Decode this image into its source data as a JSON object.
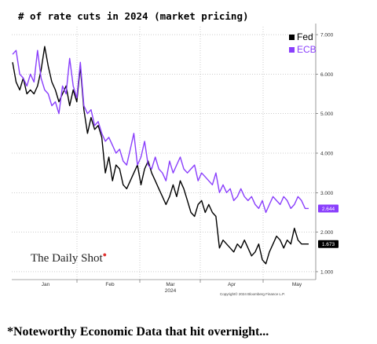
{
  "chart_data": {
    "type": "line",
    "title": "# of rate cuts in 2024 (market pricing)",
    "x_ticks": [
      "Jan",
      "Feb",
      "Mar",
      "Apr",
      "May"
    ],
    "x_year_label": "2024",
    "ylim": [
      0.8,
      7.2
    ],
    "y_ticks": [
      1.0,
      2.0,
      3.0,
      4.0,
      5.0,
      6.0,
      7.0
    ],
    "y_tick_labels": [
      "1.000",
      "2.000",
      "3.000",
      "4.000",
      "5.000",
      "6.000",
      "7.000"
    ],
    "grid": true,
    "legend_position": "top-right",
    "series": [
      {
        "name": "Fed",
        "color": "#000000",
        "last_value_label": "1.673",
        "values": [
          6.3,
          5.8,
          5.6,
          5.9,
          5.5,
          5.6,
          5.5,
          5.7,
          6.1,
          6.7,
          6.2,
          5.8,
          5.6,
          5.3,
          5.5,
          5.7,
          5.2,
          5.6,
          5.3,
          6.2,
          5.1,
          4.5,
          4.9,
          4.6,
          4.7,
          4.4,
          3.5,
          3.9,
          3.3,
          3.7,
          3.6,
          3.2,
          3.1,
          3.3,
          3.5,
          3.7,
          3.2,
          3.6,
          3.8,
          3.5,
          3.3,
          3.1,
          2.9,
          2.7,
          2.9,
          3.2,
          2.9,
          3.3,
          3.1,
          2.8,
          2.5,
          2.4,
          2.7,
          2.8,
          2.5,
          2.7,
          2.5,
          2.4,
          1.6,
          1.8,
          1.7,
          1.6,
          1.5,
          1.7,
          1.6,
          1.8,
          1.6,
          1.4,
          1.5,
          1.7,
          1.3,
          1.2,
          1.5,
          1.7,
          1.9,
          1.8,
          1.6,
          1.8,
          1.7,
          2.1,
          1.8,
          1.7,
          1.7,
          1.7
        ]
      },
      {
        "name": "ECB",
        "color": "#8a3ffc",
        "last_value_label": "2.644",
        "values": [
          6.5,
          6.6,
          6.0,
          5.9,
          5.7,
          6.0,
          5.8,
          6.6,
          5.9,
          5.6,
          5.5,
          5.2,
          5.3,
          5.0,
          5.7,
          5.5,
          6.4,
          5.7,
          5.4,
          6.3,
          5.2,
          5.0,
          5.1,
          4.7,
          4.8,
          4.5,
          4.3,
          4.4,
          4.2,
          4.0,
          4.1,
          3.8,
          3.7,
          4.1,
          4.5,
          3.7,
          3.9,
          4.3,
          3.7,
          3.6,
          3.9,
          3.6,
          3.5,
          3.3,
          3.8,
          3.5,
          3.7,
          3.9,
          3.6,
          3.5,
          3.6,
          3.7,
          3.3,
          3.5,
          3.4,
          3.3,
          3.2,
          3.5,
          3.0,
          3.2,
          3.0,
          3.1,
          2.8,
          2.9,
          3.1,
          2.9,
          2.8,
          2.9,
          2.7,
          2.6,
          2.8,
          2.5,
          2.7,
          2.9,
          2.8,
          2.7,
          2.9,
          2.8,
          2.6,
          2.7,
          2.9,
          2.8,
          2.6,
          2.6
        ]
      }
    ]
  },
  "legend": {
    "fed_label": "Fed",
    "ecb_label": "ECB"
  },
  "watermark": {
    "text": "The Daily Shot"
  },
  "copyright": "Copyright© 2024 Bloomberg Finance L.P.",
  "caption": "*Noteworthy Economic Data that hit overnight..."
}
